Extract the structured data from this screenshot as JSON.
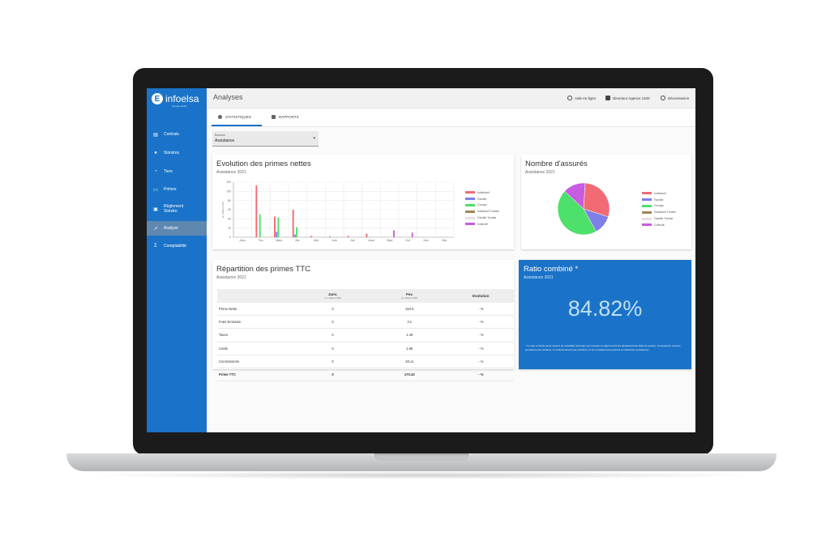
{
  "app": {
    "logo": "infoelsa",
    "logo_sub": "Groupe ELSA",
    "page_title": "Analyses"
  },
  "sidebar": {
    "items": [
      {
        "label": "Contrats",
        "icon": "document-icon"
      },
      {
        "label": "Sinistres",
        "icon": "person-icon"
      },
      {
        "label": "Tiers",
        "icon": "pie-icon"
      },
      {
        "label": "Primes",
        "icon": "card-icon"
      },
      {
        "label": "Règlement Sinistre",
        "icon": "payment-icon"
      },
      {
        "label": "Analyse",
        "icon": "trend-icon",
        "active": true
      },
      {
        "label": "Comptabilité",
        "icon": "sigma-icon"
      }
    ]
  },
  "header": {
    "help": "Aide en ligne",
    "user": "Directeur Agence 1100",
    "logout": "Déconnexion"
  },
  "tabs": [
    {
      "label": "STATISTIQUES",
      "active": true
    },
    {
      "label": "RAPPORTS"
    }
  ],
  "filter": {
    "label": "Branche",
    "value": "Assistance"
  },
  "colors": {
    "accent": "#1a73c8",
    "individuel": "#f26b74",
    "famille": "#7f7fe8",
    "groupe": "#4de06b",
    "individuel_tunisie": "#a0855b",
    "famille_tunisie": "#ecdce0",
    "collectif": "#c85ce0"
  },
  "evolution": {
    "title": "Evolution des primes nettes",
    "subtitle": "Assistance 2021"
  },
  "assures": {
    "title": "Nombre d'assurés",
    "subtitle": "Assistance 2021"
  },
  "chart_data": [
    {
      "type": "bar",
      "title": "Evolution des primes nettes",
      "subtitle": "Assistance 2021",
      "ylabel": "en milliers DZD",
      "ylim": [
        0,
        120
      ],
      "yticks": [
        "0",
        "20",
        "40",
        "60",
        "80",
        "100",
        "120"
      ],
      "grid": true,
      "legend_position": "right",
      "categories": [
        "Janv.",
        "Fev.",
        "Marc.",
        "Avr.",
        "Mai",
        "Juin",
        "Juil.",
        "Aout",
        "Sept",
        "Oct.",
        "Nov.",
        "Dec."
      ],
      "series": [
        {
          "name": "Individuel",
          "color": "#f26b74",
          "values": [
            0,
            113,
            45,
            60,
            3,
            2,
            3,
            8,
            0,
            0,
            0,
            0
          ]
        },
        {
          "name": "Famille",
          "color": "#7f7fe8",
          "values": [
            0,
            0,
            12,
            6,
            0,
            0,
            0,
            0,
            0,
            0,
            0,
            0
          ]
        },
        {
          "name": "Groupe",
          "color": "#4de06b",
          "values": [
            0,
            50,
            43,
            22,
            0,
            0,
            0,
            0,
            0,
            0,
            0,
            0
          ]
        },
        {
          "name": "Individuel Tunisie",
          "color": "#a0855b",
          "values": [
            0,
            0,
            0,
            0,
            0,
            0,
            0,
            0,
            0,
            0,
            0,
            0
          ]
        },
        {
          "name": "Famille Tunisie",
          "color": "#ecdce0",
          "values": [
            0,
            0,
            0,
            0,
            0,
            0,
            0,
            0,
            0,
            0,
            0,
            0
          ]
        },
        {
          "name": "Collectif",
          "color": "#c85ce0",
          "values": [
            0,
            0,
            0,
            0,
            0,
            0,
            0,
            0,
            15,
            10,
            0,
            0
          ]
        }
      ]
    },
    {
      "type": "pie",
      "title": "Nombre d'assurés",
      "subtitle": "Assistance 2021",
      "legend_position": "right",
      "slices": [
        {
          "name": "Individuel",
          "value": 29,
          "color": "#f26b74"
        },
        {
          "name": "Famille",
          "value": 12,
          "color": "#7f7fe8"
        },
        {
          "name": "Groupe",
          "value": 45,
          "color": "#4de06b"
        },
        {
          "name": "Individuel Tunisie",
          "value": 0,
          "color": "#a0855b"
        },
        {
          "name": "Famille Tunisie",
          "value": 0,
          "color": "#ecdce0"
        },
        {
          "name": "Collectif",
          "value": 14,
          "color": "#c85ce0"
        }
      ]
    }
  ],
  "repartition": {
    "title": "Répartition des primes TTC",
    "subtitle": "Assistance 2021",
    "columns": [
      {
        "label": "",
        "unit": ""
      },
      {
        "label": "Janv.",
        "unit": "en milliers DZD"
      },
      {
        "label": "Fev.",
        "unit": "en milliers DZD"
      },
      {
        "label": "Evolution",
        "unit": ""
      }
    ],
    "rows": [
      {
        "label": "Prime Nette",
        "janv": "0",
        "fev": "163.9",
        "evol": "- %"
      },
      {
        "label": "Frais Emission",
        "janv": "0",
        "fev": "3.1",
        "evol": "- %"
      },
      {
        "label": "Taxes",
        "janv": "0",
        "fev": "1.48",
        "evol": "- %"
      },
      {
        "label": "Coûts",
        "janv": "0",
        "fev": "1.85",
        "evol": "- %"
      },
      {
        "label": "Commissions",
        "janv": "0",
        "fev": "28.11",
        "evol": "- %"
      },
      {
        "label": "Prime TTC",
        "janv": "0",
        "fev": "170.33",
        "evol": "- %",
        "bold": true
      }
    ]
  },
  "ratio": {
    "title": "Ratio combiné *",
    "subtitle": "Assistance 2021",
    "value": "84.82%",
    "note": "* Le ratio combiné est la mesure de rentabilité technique qui compare le rapport entre les décaissements (frais de gestion, commissions versées, provisions pour sinistres, et remboursement des sinistres), et les encaissements (primes et cotisations encaissées)."
  }
}
